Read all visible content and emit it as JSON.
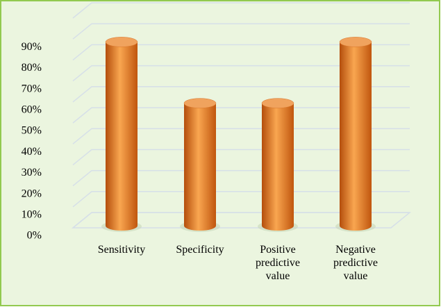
{
  "chart_data": {
    "type": "bar",
    "categories": [
      "Sensitivity",
      "Specificity",
      "Positive predictive value",
      "Negative predictive value"
    ],
    "values": [
      90,
      60,
      60,
      90
    ],
    "color": "#e8822a",
    "ylim": [
      0,
      100
    ],
    "yticks": [
      {
        "value": 0,
        "label": "0%"
      },
      {
        "value": 10,
        "label": "10%"
      },
      {
        "value": 20,
        "label": "20%"
      },
      {
        "value": 30,
        "label": "30%"
      },
      {
        "value": 40,
        "label": "40%"
      },
      {
        "value": 50,
        "label": "50%"
      },
      {
        "value": 60,
        "label": "60%"
      },
      {
        "value": 70,
        "label": "70%"
      },
      {
        "value": 80,
        "label": "80%"
      },
      {
        "value": 90,
        "label": "90%"
      }
    ],
    "grid": true
  }
}
